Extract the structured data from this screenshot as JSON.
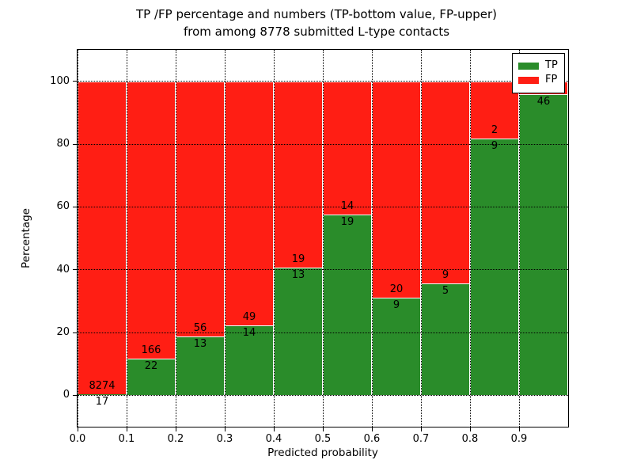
{
  "title": {
    "line1": "TP /FP percentage and numbers (TP-bottom value, FP-upper)",
    "line2": "from among 8778 submitted L-type contacts"
  },
  "chart_data": {
    "type": "bar",
    "stacked": true,
    "normalized_to_percent": true,
    "title": "TP /FP percentage and numbers (TP-bottom value, FP-upper)\nfrom among 8778 submitted L-type contacts",
    "xlabel": "Predicted probability",
    "ylabel": "Percentage",
    "x_tick_labels": [
      "0.0",
      "0.1",
      "0.2",
      "0.3",
      "0.4",
      "0.5",
      "0.6",
      "0.7",
      "0.8",
      "0.9"
    ],
    "y_tick_values": [
      0,
      20,
      40,
      60,
      80,
      100
    ],
    "y_tick_labels": [
      "0",
      "20",
      "40",
      "60",
      "80",
      "100"
    ],
    "xlim": [
      0.0,
      1.0
    ],
    "ylim": [
      -10,
      110
    ],
    "grid": "dotted, both axes, drawn over bars",
    "total_submitted_contacts": 8778,
    "colors": {
      "tp": "#2a8c2a",
      "fp": "#ff1e14",
      "bar_edge": "#ffffff"
    },
    "legend": {
      "position": "upper right",
      "entries": [
        {
          "label": "TP",
          "color": "#2a8c2a"
        },
        {
          "label": "FP",
          "color": "#ff1e14"
        }
      ]
    },
    "bins": [
      {
        "range": [
          0.0,
          0.1
        ],
        "tp": 17,
        "fp": 8274,
        "tp_pct": 0.21
      },
      {
        "range": [
          0.1,
          0.2
        ],
        "tp": 22,
        "fp": 166,
        "tp_pct": 11.7
      },
      {
        "range": [
          0.2,
          0.3
        ],
        "tp": 13,
        "fp": 56,
        "tp_pct": 18.84
      },
      {
        "range": [
          0.3,
          0.4
        ],
        "tp": 14,
        "fp": 49,
        "tp_pct": 22.22
      },
      {
        "range": [
          0.4,
          0.5
        ],
        "tp": 13,
        "fp": 19,
        "tp_pct": 40.63
      },
      {
        "range": [
          0.5,
          0.6
        ],
        "tp": 19,
        "fp": 14,
        "tp_pct": 57.58
      },
      {
        "range": [
          0.6,
          0.7
        ],
        "tp": 9,
        "fp": 20,
        "tp_pct": 31.03
      },
      {
        "range": [
          0.7,
          0.8
        ],
        "tp": 5,
        "fp": 9,
        "tp_pct": 35.71
      },
      {
        "range": [
          0.8,
          0.9
        ],
        "tp": 9,
        "fp": 2,
        "tp_pct": 81.82
      },
      {
        "range": [
          0.9,
          1.0
        ],
        "tp": 46,
        "fp": null,
        "tp_pct": 95.83,
        "fp_label_hidden_by_legend": true
      }
    ]
  }
}
